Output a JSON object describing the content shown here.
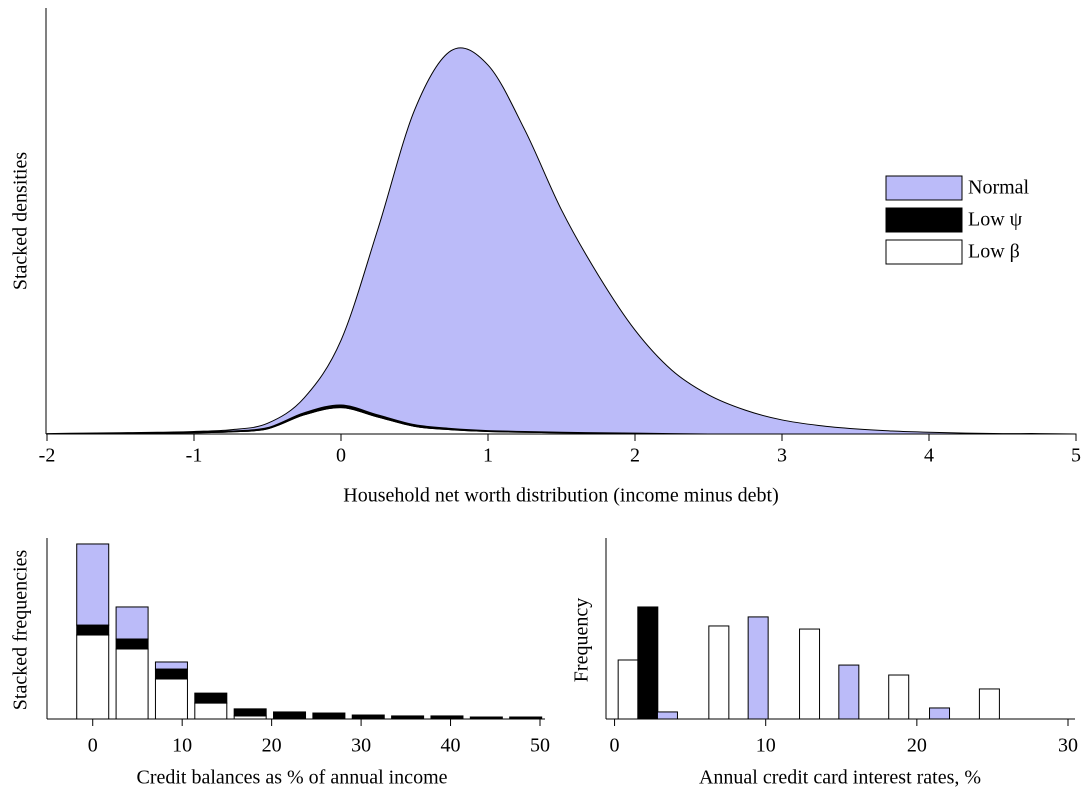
{
  "chart_data": [
    {
      "type": "area",
      "stacked": true,
      "x_label": "Household net worth distribution (income minus debt)",
      "y_label": "Stacked densities",
      "xlim": [
        -2,
        5
      ],
      "xticks": [
        -2,
        -1,
        0,
        1,
        2,
        3,
        4,
        5
      ],
      "ylim": [
        0,
        1
      ],
      "legend": "right",
      "x": [
        -2,
        -1.75,
        -1.5,
        -1.25,
        -1,
        -0.75,
        -0.5,
        -0.25,
        0,
        0.25,
        0.5,
        0.75,
        1,
        1.25,
        1.5,
        1.75,
        2,
        2.25,
        2.5,
        2.75,
        3,
        3.25,
        3.5,
        3.75,
        4,
        4.25,
        4.5,
        4.75,
        5
      ],
      "series": [
        {
          "name": "Low β",
          "color": "#ffffff",
          "values": [
            0,
            0,
            0.001,
            0.002,
            0.003,
            0.005,
            0.012,
            0.045,
            0.062,
            0.04,
            0.018,
            0.01,
            0.006,
            0.004,
            0.003,
            0.002,
            0.001,
            0,
            0,
            0,
            0,
            0,
            0,
            0,
            0,
            0,
            0,
            0,
            0
          ]
        },
        {
          "name": "Low ψ",
          "color": "#000000",
          "values": [
            0,
            0.001,
            0.001,
            0.001,
            0.001,
            0.002,
            0.003,
            0.005,
            0.006,
            0.005,
            0.004,
            0.003,
            0.002,
            0.002,
            0.001,
            0.001,
            0.001,
            0.001,
            0,
            0,
            0,
            0,
            0,
            0,
            0,
            0,
            0,
            0,
            0
          ]
        },
        {
          "name": "Normal",
          "color": "#bbbbf9",
          "values": [
            0.001,
            0.001,
            0.001,
            0.001,
            0.002,
            0.003,
            0.01,
            0.035,
            0.152,
            0.435,
            0.738,
            0.887,
            0.858,
            0.708,
            0.522,
            0.37,
            0.242,
            0.149,
            0.092,
            0.056,
            0.033,
            0.02,
            0.012,
            0.007,
            0.004,
            0.002,
            0.001,
            0.001,
            0
          ]
        }
      ]
    },
    {
      "type": "bar",
      "stacked": true,
      "x_label": "Credit balances as % of annual income",
      "y_label": "Stacked frequencies",
      "xlim": [
        -5,
        50
      ],
      "xticks": [
        0,
        10,
        20,
        30,
        40,
        50
      ],
      "ylim": [
        0,
        1
      ],
      "x": [
        0,
        4.4,
        8.8,
        13.2,
        17.6,
        22,
        26.4,
        30.8,
        35.2,
        39.6,
        44,
        48.4
      ],
      "series": [
        {
          "color": "#ffffff",
          "values": [
            0.464,
            0.387,
            0.221,
            0.088,
            0.017,
            0,
            0,
            0,
            0,
            0,
            0,
            0
          ]
        },
        {
          "color": "#000000",
          "values": [
            0.055,
            0.055,
            0.055,
            0.055,
            0.039,
            0.039,
            0.033,
            0.022,
            0.017,
            0.017,
            0.011,
            0.011
          ]
        },
        {
          "color": "#bbbbf9",
          "values": [
            0.448,
            0.177,
            0.039,
            0,
            0,
            0,
            0,
            0,
            0,
            0,
            0,
            0
          ]
        }
      ]
    },
    {
      "type": "bar",
      "stacked": false,
      "x_label": "Annual credit card interest rates, %",
      "y_label": "Frequency",
      "xlim": [
        -0.5,
        30
      ],
      "xticks": [
        0,
        10,
        20,
        30
      ],
      "ylim": [
        0,
        1
      ],
      "series": [
        {
          "color": "#ffffff",
          "x": [
            0.9,
            6.9,
            12.9,
            18.8,
            24.8
          ],
          "values": [
            0.326,
            0.514,
            0.497,
            0.243,
            0.166
          ]
        },
        {
          "color": "#000000",
          "x": [
            2.2
          ],
          "values": [
            0.619
          ]
        },
        {
          "color": "#bbbbf9",
          "x": [
            3.5,
            9.5,
            15.5,
            21.5
          ],
          "values": [
            0.039,
            0.564,
            0.298,
            0.061
          ]
        }
      ]
    }
  ]
}
